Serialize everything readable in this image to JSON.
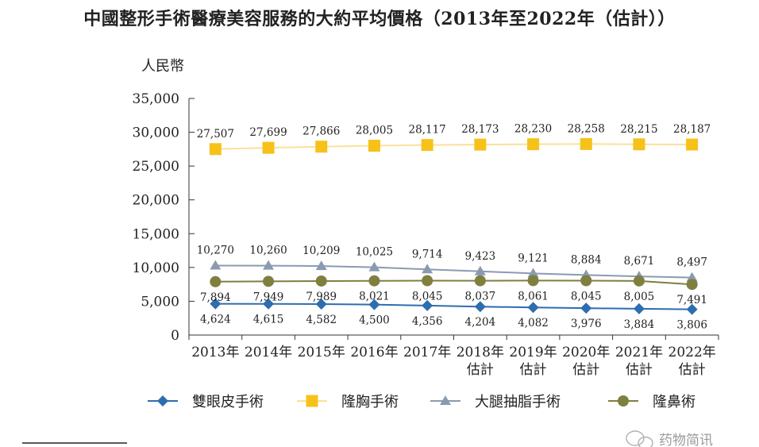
{
  "chart_data": {
    "type": "line",
    "title": "中國整形手術醫療美容服務的大約平均價格（2013年至2022年（估計））",
    "ylabel": "人民幣",
    "ylim": [
      0,
      35000
    ],
    "yticks": [
      "0",
      "5,000",
      "10,000",
      "15,000",
      "20,000",
      "25,000",
      "30,000",
      "35,000"
    ],
    "categories": [
      [
        "2013年"
      ],
      [
        "2014年"
      ],
      [
        "2015年"
      ],
      [
        "2016年"
      ],
      [
        "2017年"
      ],
      [
        "2018年",
        "估計"
      ],
      [
        "2019年",
        "估計"
      ],
      [
        "2020年",
        "估計"
      ],
      [
        "2021年",
        "估計"
      ],
      [
        "2022年",
        "估計"
      ]
    ],
    "series": [
      {
        "name": "雙眼皮手術",
        "color": "#2e6db0",
        "marker": "diamond",
        "label_position": "below",
        "values": [
          4624,
          4615,
          4582,
          4500,
          4356,
          4204,
          4082,
          3976,
          3884,
          3806
        ],
        "labels": [
          "4,624",
          "4,615",
          "4,582",
          "4,500",
          "4,356",
          "4,204",
          "4,082",
          "3,976",
          "3,884",
          "3,806"
        ]
      },
      {
        "name": "隆胸手術",
        "color": "#f6c21a",
        "line_color": "#fbe09a",
        "marker": "square",
        "label_position": "above",
        "values": [
          27507,
          27699,
          27866,
          28005,
          28117,
          28173,
          28230,
          28258,
          28215,
          28187
        ],
        "labels": [
          "27,507",
          "27,699",
          "27,866",
          "28,005",
          "28,117",
          "28,173",
          "28,230",
          "28,258",
          "28,215",
          "28,187"
        ]
      },
      {
        "name": "大腿抽脂手術",
        "color": "#8a9bb0",
        "marker": "triangle",
        "label_position": "above",
        "values": [
          10270,
          10260,
          10209,
          10025,
          9714,
          9423,
          9121,
          8884,
          8671,
          8497
        ],
        "labels": [
          "10,270",
          "10,260",
          "10,209",
          "10,025",
          "9,714",
          "9,423",
          "9,121",
          "8,884",
          "8,671",
          "8,497"
        ]
      },
      {
        "name": "隆鼻術",
        "color": "#7f7f3f",
        "marker": "circle",
        "label_position": "below",
        "values": [
          7894,
          7949,
          7989,
          8021,
          8045,
          8037,
          8061,
          8045,
          8005,
          7491
        ],
        "labels": [
          "7,894",
          "7,949",
          "7,989",
          "8,021",
          "8,045",
          "8,037",
          "8,061",
          "8,045",
          "8,005",
          "7,491"
        ]
      }
    ],
    "legend": {
      "position": "bottom"
    },
    "grid": false
  },
  "watermark": {
    "text": "药物简讯",
    "icon": "wechat-icon"
  }
}
